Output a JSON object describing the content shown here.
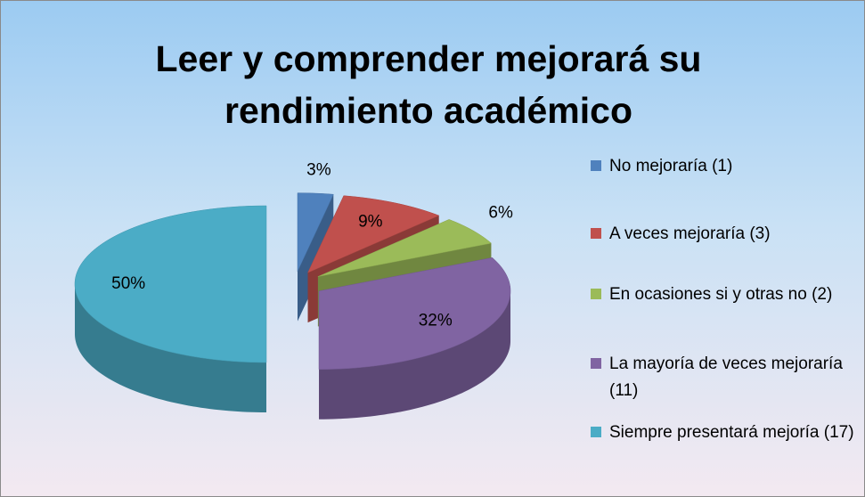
{
  "chart_data": {
    "type": "pie3d",
    "title": "Leer y comprender mejorará su rendimiento académico",
    "categories": [
      "No mejoraría (1)",
      "A veces mejoraría (3)",
      "En ocasiones si y otras no (2)",
      "La mayoría de veces mejoraría (11)",
      "Siempre presentará mejoría (17)"
    ],
    "values": [
      3,
      9,
      6,
      32,
      50
    ],
    "value_labels": [
      "3%",
      "9%",
      "6%",
      "32%",
      "50%"
    ],
    "colors": [
      "#4f81bd",
      "#c0504d",
      "#9bbb59",
      "#8064a2",
      "#4bacc6"
    ],
    "legend": "right"
  }
}
